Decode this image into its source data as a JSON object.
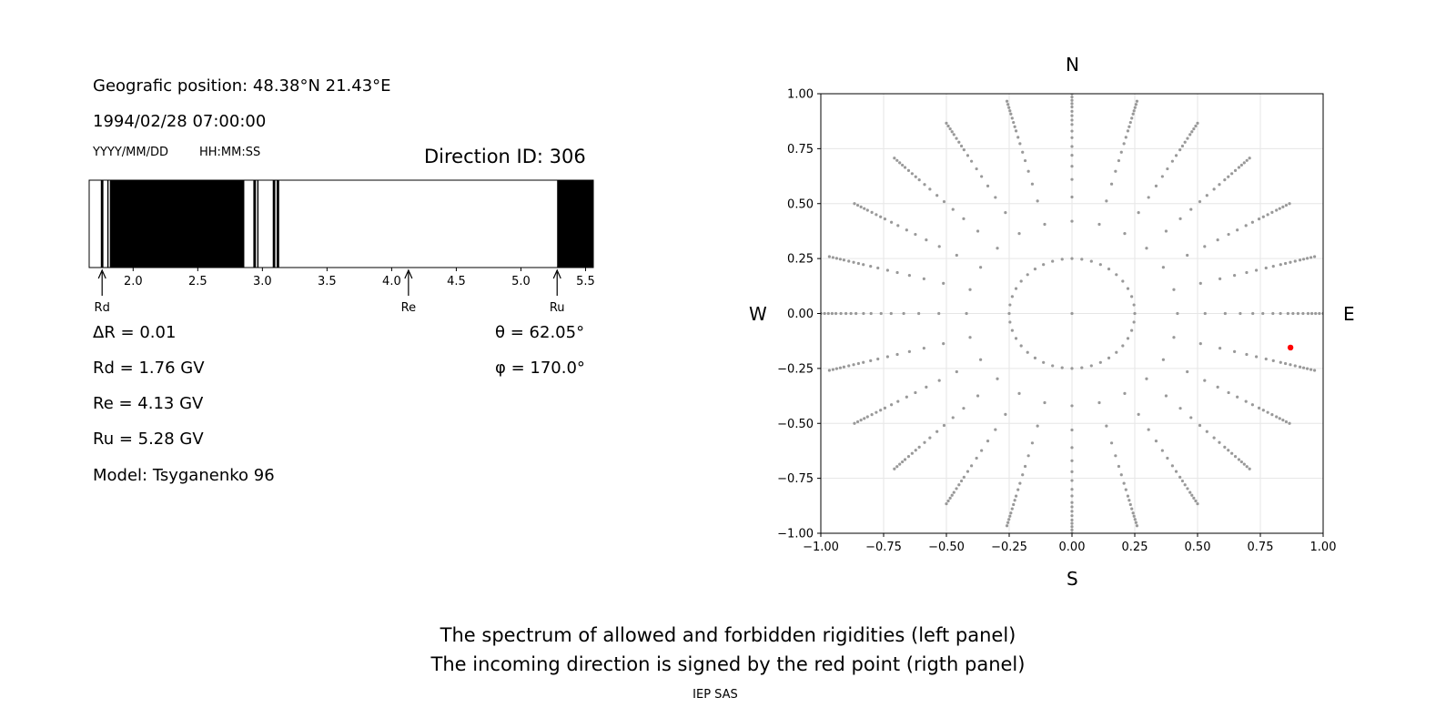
{
  "header": {
    "geo_position": "Geografic position: 48.38°N 21.43°E",
    "datetime": "1994/02/28 07:00:00",
    "date_format": "YYYY/MM/DD",
    "time_format": "HH:MM:SS",
    "direction_id": "Direction ID: 306"
  },
  "values": {
    "delta_r": "ΔR = 0.01",
    "rd": "Rd = 1.76 GV",
    "re": "Re = 4.13 GV",
    "ru": "Ru = 5.28 GV",
    "model": "Model: Tsyganenko 96",
    "theta": "θ = 62.05°",
    "phi": "φ = 170.0°"
  },
  "compass": {
    "n": "N",
    "s": "S",
    "w": "W",
    "e": "E"
  },
  "footer": {
    "line1": "The spectrum of allowed and forbidden rigidities (left panel)",
    "line2": "The incoming direction is signed by the red point (rigth panel)",
    "credit": "IEP SAS"
  },
  "chart_data": [
    {
      "type": "bar",
      "xlim": [
        1.66,
        5.56
      ],
      "xticks": [
        2.0,
        2.5,
        3.0,
        3.5,
        4.0,
        4.5,
        5.0,
        5.5
      ],
      "xtick_labels": [
        "2.0",
        "2.5",
        "3.0",
        "3.5",
        "4.0",
        "4.5",
        "5.0",
        "5.5"
      ],
      "forbidden_intervals": [
        [
          1.75,
          1.77
        ],
        [
          1.8,
          1.81
        ],
        [
          1.82,
          2.86
        ],
        [
          2.93,
          2.95
        ],
        [
          2.96,
          2.97
        ],
        [
          3.08,
          3.1
        ],
        [
          3.11,
          3.13
        ],
        [
          5.28,
          5.56
        ]
      ],
      "markers": [
        {
          "label": "Rd",
          "value": 1.76
        },
        {
          "label": "Re",
          "value": 4.13
        },
        {
          "label": "Ru",
          "value": 5.28
        }
      ],
      "colors": {
        "forbidden": "#000000",
        "allowed": "#ffffff"
      }
    },
    {
      "type": "scatter",
      "xlim": [
        -1.0,
        1.0
      ],
      "ylim": [
        -1.0,
        1.0
      ],
      "xticks": [
        -1.0,
        -0.75,
        -0.5,
        -0.25,
        0.0,
        0.25,
        0.5,
        0.75,
        1.0
      ],
      "yticks": [
        -1.0,
        -0.75,
        -0.5,
        -0.25,
        0.0,
        0.25,
        0.5,
        0.75,
        1.0
      ],
      "xtick_labels": [
        "−1.00",
        "−0.75",
        "−0.50",
        "−0.25",
        "0.00",
        "0.25",
        "0.50",
        "0.75",
        "1.00"
      ],
      "ytick_labels": [
        "−1.00",
        "−0.75",
        "−0.50",
        "−0.25",
        "0.00",
        "0.25",
        "0.50",
        "0.75",
        "1.00"
      ],
      "grid": true,
      "pattern": {
        "rings": [
          0.0,
          0.25,
          0.42,
          0.53,
          0.61,
          0.67,
          0.72,
          0.76,
          0.8,
          0.83,
          0.86,
          0.88,
          0.9,
          0.92,
          0.94,
          0.955,
          0.97,
          0.985,
          1.0
        ],
        "inner_ring_points": 40,
        "outer_ring_rays": 24
      },
      "highlight": {
        "x": 0.87,
        "y": -0.155,
        "color": "#ff0000"
      },
      "point_color": "#999999"
    }
  ]
}
